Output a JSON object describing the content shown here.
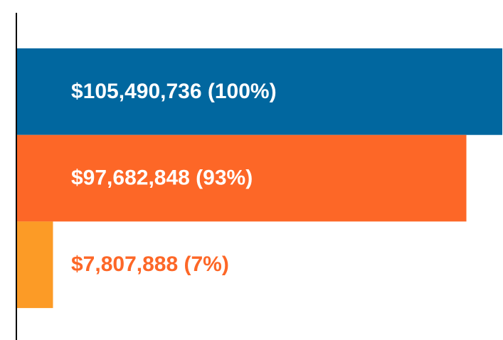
{
  "chart_data": {
    "type": "bar",
    "orientation": "horizontal",
    "values": [
      105490736,
      97682848,
      7807888
    ],
    "value_labels": [
      "$105,490,736 (100%)",
      "$97,682,848 (93%)",
      "$7,807,888 (7%)"
    ],
    "colors": [
      "#01679f",
      "#fd6727",
      "#fc9b26"
    ],
    "label_colors": [
      "#ffffff",
      "#ffffff",
      "#fd6727"
    ]
  }
}
